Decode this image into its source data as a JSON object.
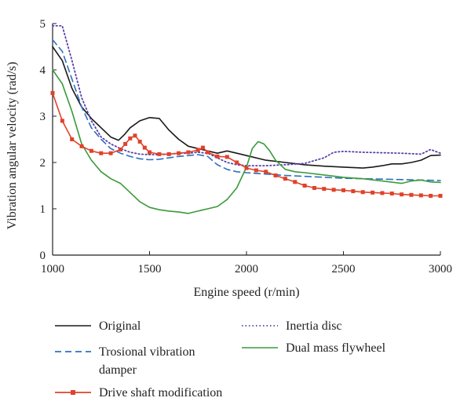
{
  "chart_data": {
    "type": "line",
    "xlabel": "Engine speed (r/min)",
    "ylabel": "Vibration angular velocity (rad/s)",
    "xlim": [
      1000,
      3000
    ],
    "ylim": [
      0,
      5
    ],
    "x_ticks": [
      "1000",
      "1500",
      "2000",
      "2500",
      "3000"
    ],
    "y_ticks": [
      "0",
      "1",
      "2",
      "3",
      "4",
      "5"
    ],
    "grid": false,
    "legend_position": "bottom",
    "series": [
      {
        "name": "Original",
        "color": "#1a1a1a",
        "style": "solid",
        "x": [
          1000,
          1050,
          1100,
          1150,
          1200,
          1250,
          1300,
          1340,
          1370,
          1400,
          1450,
          1500,
          1550,
          1600,
          1650,
          1700,
          1750,
          1800,
          1850,
          1900,
          1950,
          2000,
          2100,
          2200,
          2300,
          2400,
          2500,
          2600,
          2650,
          2700,
          2750,
          2800,
          2850,
          2900,
          2950,
          3000
        ],
        "y": [
          4.5,
          4.2,
          3.6,
          3.2,
          2.95,
          2.75,
          2.55,
          2.48,
          2.6,
          2.75,
          2.9,
          2.97,
          2.95,
          2.7,
          2.5,
          2.35,
          2.3,
          2.25,
          2.2,
          2.25,
          2.2,
          2.15,
          2.05,
          2.0,
          1.95,
          1.92,
          1.9,
          1.88,
          1.9,
          1.93,
          1.97,
          1.97,
          2.0,
          2.05,
          2.15,
          2.16
        ]
      },
      {
        "name": "Trosional vibration damper",
        "color": "#2e6fc0",
        "style": "dashed",
        "x": [
          1000,
          1050,
          1100,
          1150,
          1200,
          1250,
          1300,
          1350,
          1400,
          1450,
          1500,
          1550,
          1600,
          1650,
          1700,
          1750,
          1800,
          1850,
          1900,
          1950,
          2000,
          2100,
          2200,
          2300,
          2400,
          2500,
          2600,
          2700,
          2800,
          2900,
          3000
        ],
        "y": [
          4.65,
          4.4,
          3.8,
          3.2,
          2.75,
          2.5,
          2.3,
          2.2,
          2.13,
          2.08,
          2.06,
          2.07,
          2.1,
          2.13,
          2.15,
          2.17,
          2.13,
          1.95,
          1.85,
          1.8,
          1.78,
          1.75,
          1.72,
          1.7,
          1.68,
          1.66,
          1.65,
          1.64,
          1.63,
          1.62,
          1.61
        ]
      },
      {
        "name": "Inertia disc",
        "color": "#5a3ea8",
        "style": "dotted",
        "x": [
          1000,
          1050,
          1100,
          1150,
          1200,
          1250,
          1300,
          1350,
          1400,
          1450,
          1500,
          1550,
          1600,
          1650,
          1700,
          1750,
          1800,
          1850,
          1900,
          1950,
          2000,
          2100,
          2200,
          2300,
          2400,
          2450,
          2500,
          2600,
          2700,
          2800,
          2900,
          2950,
          3000
        ],
        "y": [
          4.95,
          4.95,
          4.2,
          3.4,
          2.9,
          2.55,
          2.4,
          2.3,
          2.22,
          2.18,
          2.17,
          2.17,
          2.18,
          2.2,
          2.2,
          2.22,
          2.2,
          2.1,
          2.0,
          1.95,
          1.93,
          1.93,
          1.95,
          1.98,
          2.1,
          2.22,
          2.24,
          2.22,
          2.21,
          2.2,
          2.18,
          2.28,
          2.2
        ]
      },
      {
        "name": "Dual mass flywheel",
        "color": "#3a9a3a",
        "style": "solid",
        "x": [
          1000,
          1050,
          1100,
          1150,
          1200,
          1250,
          1300,
          1350,
          1400,
          1450,
          1500,
          1550,
          1600,
          1650,
          1700,
          1750,
          1800,
          1850,
          1900,
          1950,
          2000,
          2030,
          2060,
          2090,
          2120,
          2150,
          2200,
          2250,
          2300,
          2400,
          2500,
          2600,
          2700,
          2800,
          2850,
          2900,
          2950,
          3000
        ],
        "y": [
          4.0,
          3.7,
          3.1,
          2.4,
          2.05,
          1.8,
          1.65,
          1.55,
          1.35,
          1.15,
          1.03,
          0.98,
          0.95,
          0.93,
          0.9,
          0.95,
          1.0,
          1.05,
          1.2,
          1.45,
          1.9,
          2.3,
          2.45,
          2.4,
          2.25,
          2.05,
          1.85,
          1.8,
          1.78,
          1.73,
          1.68,
          1.65,
          1.6,
          1.55,
          1.6,
          1.62,
          1.58,
          1.57
        ]
      },
      {
        "name": "Drive shaft modification",
        "color": "#e0422a",
        "style": "solid-marker",
        "x": [
          1000,
          1050,
          1100,
          1150,
          1200,
          1250,
          1300,
          1350,
          1375,
          1400,
          1425,
          1450,
          1475,
          1500,
          1550,
          1600,
          1650,
          1700,
          1750,
          1775,
          1800,
          1850,
          1900,
          1950,
          2000,
          2050,
          2100,
          2150,
          2200,
          2250,
          2300,
          2350,
          2400,
          2450,
          2500,
          2550,
          2600,
          2650,
          2700,
          2750,
          2800,
          2850,
          2900,
          2950,
          3000
        ],
        "y": [
          3.5,
          2.9,
          2.5,
          2.35,
          2.25,
          2.2,
          2.2,
          2.28,
          2.4,
          2.52,
          2.58,
          2.45,
          2.32,
          2.22,
          2.18,
          2.18,
          2.2,
          2.22,
          2.27,
          2.32,
          2.22,
          2.13,
          2.12,
          2.0,
          1.88,
          1.83,
          1.8,
          1.72,
          1.65,
          1.58,
          1.5,
          1.45,
          1.43,
          1.41,
          1.4,
          1.38,
          1.36,
          1.35,
          1.34,
          1.33,
          1.31,
          1.3,
          1.29,
          1.28,
          1.28
        ]
      }
    ]
  }
}
